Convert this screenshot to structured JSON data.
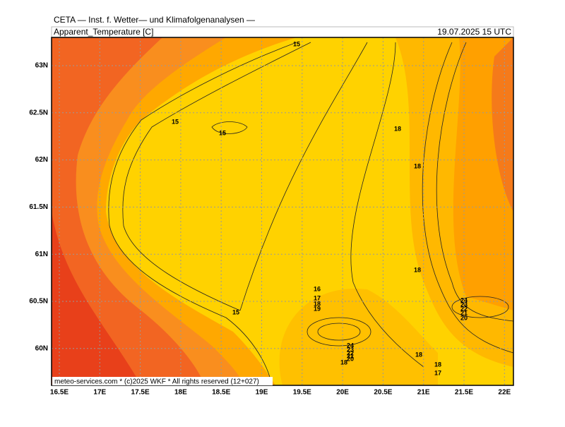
{
  "header": {
    "title": "CETA — Inst. f. Wetter— und Klimafolgenanalysen —",
    "variable": "Apparent_Temperature [C]",
    "valid_time": "19.07.2025 15 UTC"
  },
  "map": {
    "lon_labels": [
      "16.5E",
      "17E",
      "17.5E",
      "18E",
      "18.5E",
      "19E",
      "19.5E",
      "20E",
      "20.5E",
      "21E",
      "21.5E",
      "22E"
    ],
    "lat_labels": [
      "63N",
      "62.5N",
      "62N",
      "61.5N",
      "61N",
      "60.5N",
      "60N"
    ],
    "contour_labels": [
      "15",
      "15",
      "15",
      "18",
      "18",
      "18",
      "16",
      "17",
      "18",
      "19",
      "15",
      "24",
      "23",
      "22",
      "21",
      "20",
      "24",
      "23",
      "22",
      "21",
      "20",
      "18",
      "18",
      "18",
      "17"
    ]
  },
  "footer": "meteo-services.com * (c)2025 WKF * All rights reserved (12+027)"
}
